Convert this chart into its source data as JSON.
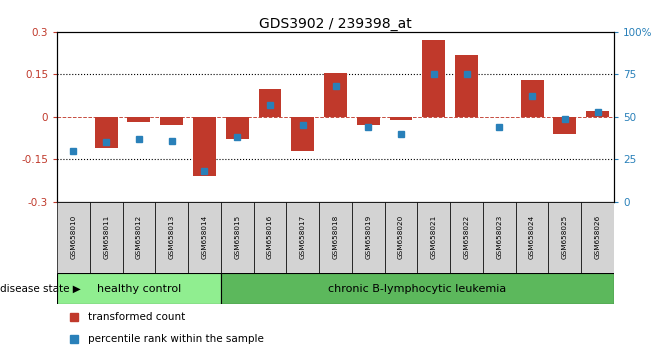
{
  "title": "GDS3902 / 239398_at",
  "samples": [
    "GSM658010",
    "GSM658011",
    "GSM658012",
    "GSM658013",
    "GSM658014",
    "GSM658015",
    "GSM658016",
    "GSM658017",
    "GSM658018",
    "GSM658019",
    "GSM658020",
    "GSM658021",
    "GSM658022",
    "GSM658023",
    "GSM658024",
    "GSM658025",
    "GSM658026"
  ],
  "red_bars": [
    0.0,
    -0.11,
    -0.02,
    -0.03,
    -0.21,
    -0.08,
    0.1,
    -0.12,
    0.155,
    -0.03,
    -0.01,
    0.27,
    0.22,
    0.0,
    0.13,
    -0.06,
    0.02
  ],
  "blue_squares": [
    30,
    35,
    37,
    36,
    18,
    38,
    57,
    45,
    68,
    44,
    40,
    75,
    75,
    44,
    62,
    49,
    53
  ],
  "healthy_count": 5,
  "ylim_left": [
    -0.3,
    0.3
  ],
  "ylim_right": [
    0,
    100
  ],
  "yticks_left": [
    -0.3,
    -0.15,
    0.0,
    0.15,
    0.3
  ],
  "yticks_right": [
    0,
    25,
    50,
    75,
    100
  ],
  "dotted_lines": [
    -0.15,
    0.15
  ],
  "bar_color": "#c0392b",
  "square_color": "#2980b9",
  "healthy_color": "#90ee90",
  "leukemia_color": "#5cb85c",
  "label_bg_color": "#d3d3d3",
  "group_label_healthy": "healthy control",
  "group_label_leukemia": "chronic B-lymphocytic leukemia",
  "legend_red": "transformed count",
  "legend_blue": "percentile rank within the sample",
  "disease_state_label": "disease state",
  "bar_width": 0.7
}
